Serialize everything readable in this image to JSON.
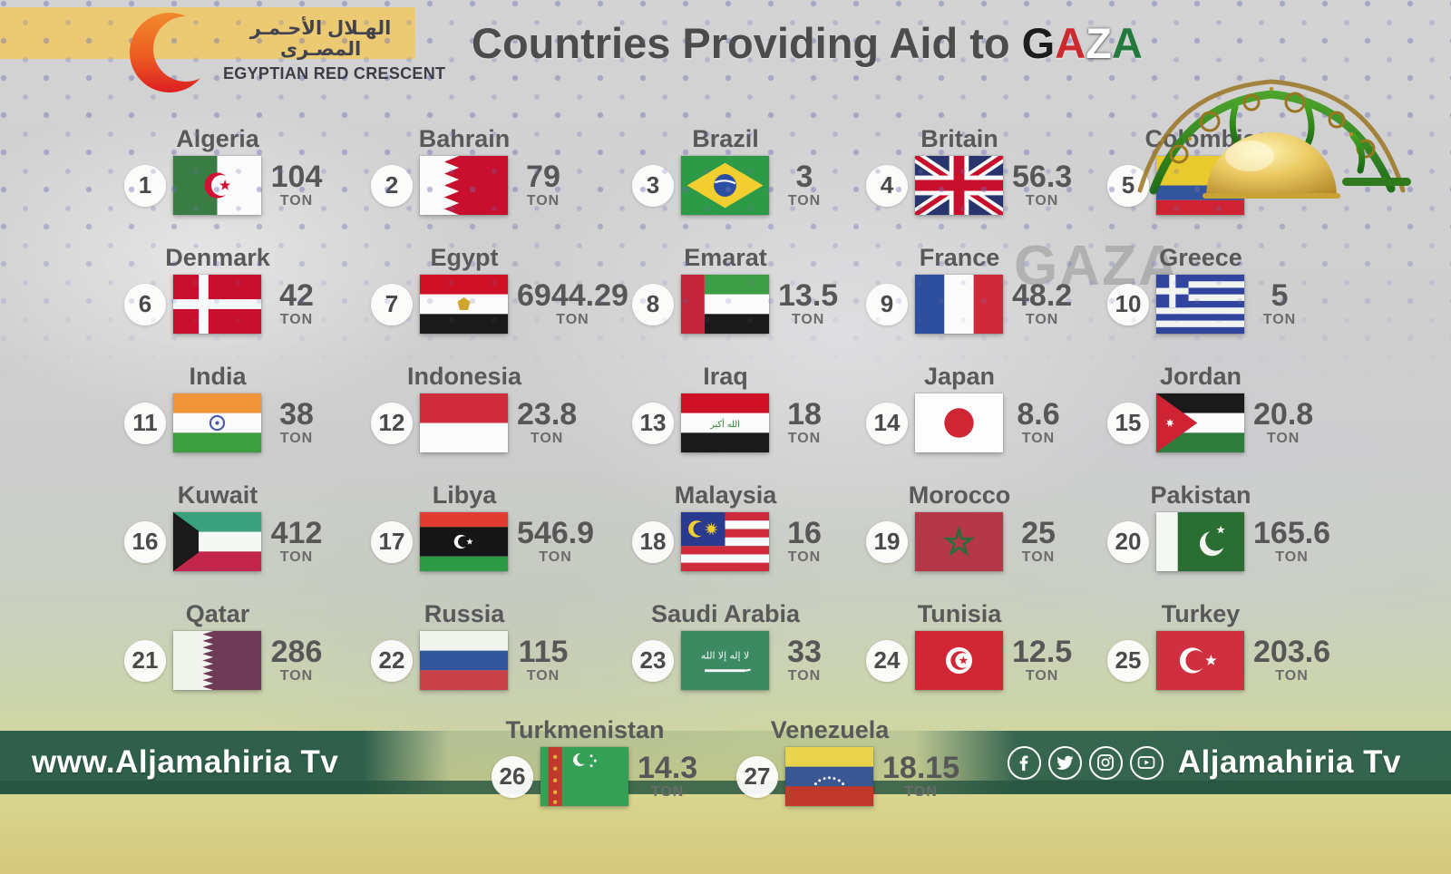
{
  "header": {
    "org_name_arabic": "الهـلال الأحـمـر المصـرى",
    "org_name_english": "EGYPTIAN RED CRESCENT",
    "title_prefix": "Countries Providing Aid to ",
    "title_highlight": "GAZA",
    "title_highlight_colors": [
      "#1d1d1b",
      "#cc2a2e",
      "#ffffff",
      "#237a3c"
    ]
  },
  "watermark": "GAZA",
  "unit_label": "TON",
  "countries": [
    {
      "rank": 1,
      "name": "Algeria",
      "value": "104",
      "flag": "algeria"
    },
    {
      "rank": 2,
      "name": "Bahrain",
      "value": "79",
      "flag": "bahrain"
    },
    {
      "rank": 3,
      "name": "Brazil",
      "value": "3",
      "flag": "brazil"
    },
    {
      "rank": 4,
      "name": "Britain",
      "value": "56.3",
      "flag": "britain"
    },
    {
      "rank": 5,
      "name": "Colombia",
      "value": "",
      "flag": "colombia"
    },
    {
      "rank": 6,
      "name": "Denmark",
      "value": "42",
      "flag": "denmark"
    },
    {
      "rank": 7,
      "name": "Egypt",
      "value": "6944.29",
      "flag": "egypt"
    },
    {
      "rank": 8,
      "name": "Emarat",
      "value": "13.5",
      "flag": "emarat"
    },
    {
      "rank": 9,
      "name": "France",
      "value": "48.2",
      "flag": "france"
    },
    {
      "rank": 10,
      "name": "Greece",
      "value": "5",
      "flag": "greece"
    },
    {
      "rank": 11,
      "name": "India",
      "value": "38",
      "flag": "india"
    },
    {
      "rank": 12,
      "name": "Indonesia",
      "value": "23.8",
      "flag": "indonesia"
    },
    {
      "rank": 13,
      "name": "Iraq",
      "value": "18",
      "flag": "iraq"
    },
    {
      "rank": 14,
      "name": "Japan",
      "value": "8.6",
      "flag": "japan"
    },
    {
      "rank": 15,
      "name": "Jordan",
      "value": "20.8",
      "flag": "jordan"
    },
    {
      "rank": 16,
      "name": "Kuwait",
      "value": "412",
      "flag": "kuwait"
    },
    {
      "rank": 17,
      "name": "Libya",
      "value": "546.9",
      "flag": "libya"
    },
    {
      "rank": 18,
      "name": "Malaysia",
      "value": "16",
      "flag": "malaysia"
    },
    {
      "rank": 19,
      "name": "Morocco",
      "value": "25",
      "flag": "morocco"
    },
    {
      "rank": 20,
      "name": "Pakistan",
      "value": "165.6",
      "flag": "pakistan"
    },
    {
      "rank": 21,
      "name": "Qatar",
      "value": "286",
      "flag": "qatar"
    },
    {
      "rank": 22,
      "name": "Russia",
      "value": "115",
      "flag": "russia"
    },
    {
      "rank": 23,
      "name": "Saudi Arabia",
      "value": "33",
      "flag": "saudi"
    },
    {
      "rank": 24,
      "name": "Tunisia",
      "value": "12.5",
      "flag": "tunisia"
    },
    {
      "rank": 25,
      "name": "Turkey",
      "value": "203.6",
      "flag": "turkey"
    },
    {
      "rank": 26,
      "name": "Turkmenistan",
      "value": "14.3",
      "flag": "turkmenistan"
    },
    {
      "rank": 27,
      "name": "Venezuela",
      "value": "18.15",
      "flag": "venezuela"
    }
  ],
  "footer": {
    "website": "www.Aljamahiria Tv",
    "channel_name": "Aljamahiria Tv",
    "social_icons": [
      "facebook",
      "twitter",
      "instagram",
      "youtube"
    ]
  },
  "colors": {
    "band_green": "#2a5c49",
    "yellow_band": "#ecca74",
    "title_gray": "#4c4c4c",
    "text_gray": "#595959"
  },
  "chart_data": {
    "type": "table",
    "title": "Countries Providing Aid to GAZA",
    "unit": "TON",
    "categories": [
      "Algeria",
      "Bahrain",
      "Brazil",
      "Britain",
      "Colombia",
      "Denmark",
      "Egypt",
      "Emarat",
      "France",
      "Greece",
      "India",
      "Indonesia",
      "Iraq",
      "Japan",
      "Jordan",
      "Kuwait",
      "Libya",
      "Malaysia",
      "Morocco",
      "Pakistan",
      "Qatar",
      "Russia",
      "Saudi Arabia",
      "Tunisia",
      "Turkey",
      "Turkmenistan",
      "Venezuela"
    ],
    "values": [
      104,
      79,
      3,
      56.3,
      null,
      42,
      6944.29,
      13.5,
      48.2,
      5,
      38,
      23.8,
      18,
      8.6,
      20.8,
      412,
      546.9,
      16,
      25,
      165.6,
      286,
      115,
      33,
      12.5,
      203.6,
      14.3,
      18.15
    ]
  }
}
